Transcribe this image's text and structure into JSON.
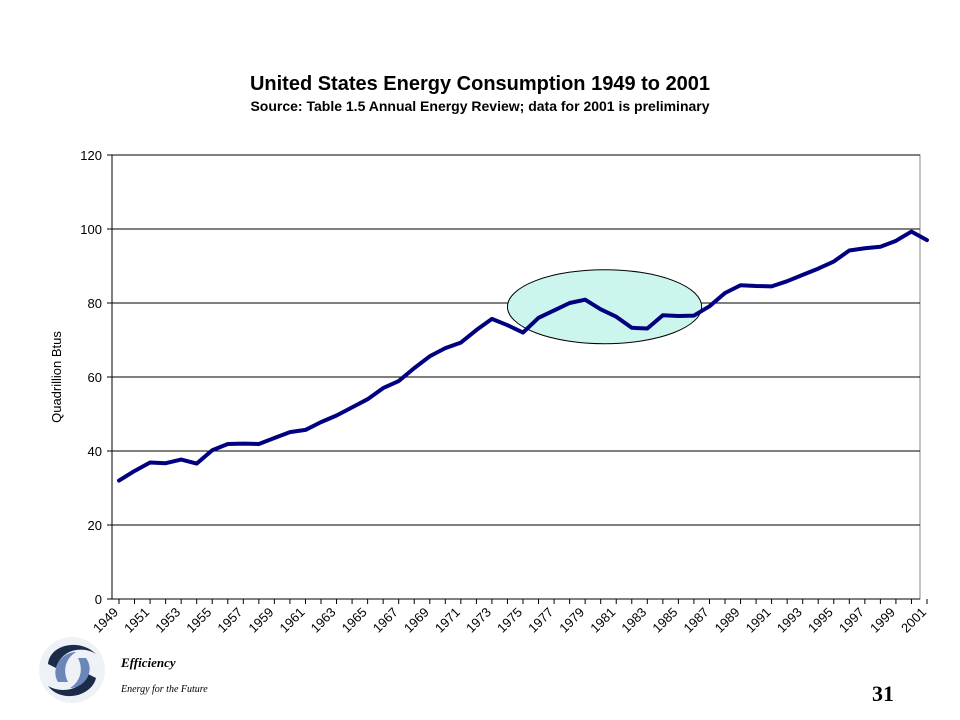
{
  "chart_data": {
    "type": "line",
    "title": "United States Energy Consumption 1949 to 2001",
    "subtitle": "Source: Table 1.5 Annual Energy Review; data for 2001 is preliminary",
    "ylabel": "Quadrillion Btus",
    "xlabel": "",
    "ylim": [
      0,
      120
    ],
    "yticks": [
      0,
      20,
      40,
      60,
      80,
      100,
      120
    ],
    "x": [
      1949,
      1950,
      1951,
      1952,
      1953,
      1954,
      1955,
      1956,
      1957,
      1958,
      1959,
      1960,
      1961,
      1962,
      1963,
      1964,
      1965,
      1966,
      1967,
      1968,
      1969,
      1970,
      1971,
      1972,
      1973,
      1974,
      1975,
      1976,
      1977,
      1978,
      1979,
      1980,
      1981,
      1982,
      1983,
      1984,
      1985,
      1986,
      1987,
      1988,
      1989,
      1990,
      1991,
      1992,
      1993,
      1994,
      1995,
      1996,
      1997,
      1998,
      1999,
      2000,
      2001
    ],
    "xtick_labels": [
      "1949",
      "1951",
      "1953",
      "1955",
      "1957",
      "1959",
      "1961",
      "1963",
      "1965",
      "1967",
      "1969",
      "1971",
      "1973",
      "1975",
      "1977",
      "1979",
      "1981",
      "1983",
      "1985",
      "1987",
      "1989",
      "1991",
      "1993",
      "1995",
      "1997",
      "1999",
      "2001"
    ],
    "series": [
      {
        "values": [
          32,
          34.6,
          36.9,
          36.7,
          37.7,
          36.6,
          40.2,
          41.9,
          42,
          41.9,
          43.5,
          45.1,
          45.7,
          47.8,
          49.6,
          51.8,
          54,
          57,
          58.9,
          62.4,
          65.6,
          67.8,
          69.3,
          72.7,
          75.7,
          74,
          72,
          76,
          78,
          80,
          80.9,
          78.3,
          76.3,
          73.3,
          73.1,
          76.7,
          76.5,
          76.6,
          79.1,
          82.7,
          84.8,
          84.6,
          84.5,
          85.9,
          87.6,
          89.3,
          91.2,
          94.2,
          94.8,
          95.2,
          96.8,
          99.3,
          97
        ],
        "color": "#000080"
      }
    ],
    "annotation": {
      "type": "ellipse",
      "x_range": [
        1974,
        1986.5
      ],
      "y_range": [
        69,
        89
      ],
      "fill": "#ccf5ed",
      "stroke": "#000000"
    },
    "grid": true,
    "legend": "none",
    "plot_background": "#ffffff"
  },
  "footer": {
    "logo": "spiral-logo-icon",
    "brand": "Efficiency",
    "tagline": "Energy for the Future",
    "page_number": "31"
  }
}
